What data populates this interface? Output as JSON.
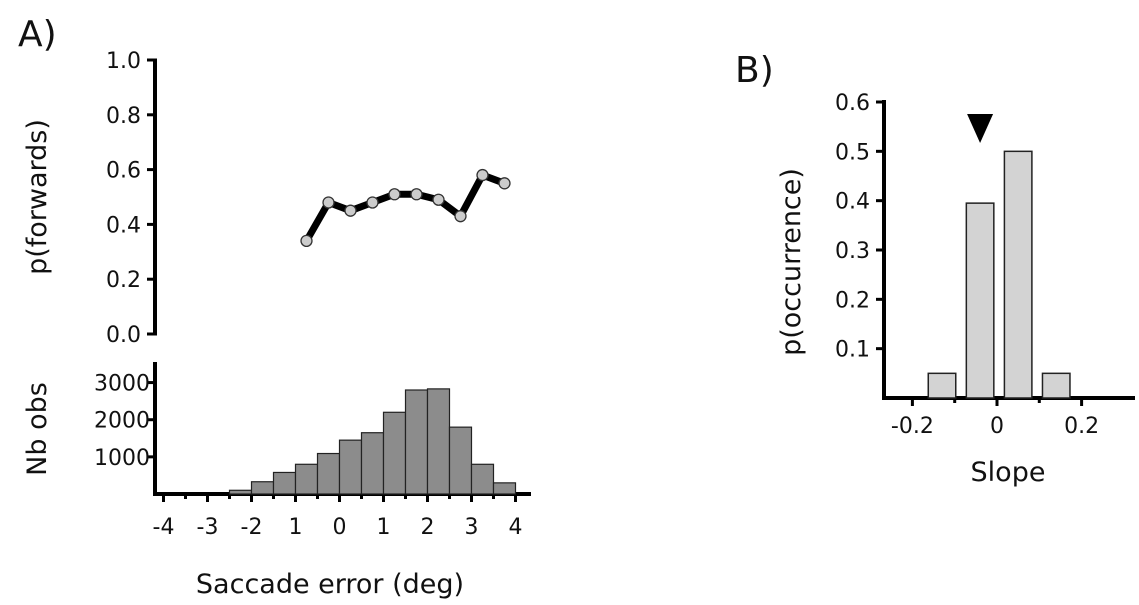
{
  "chart_data": [
    {
      "panel": "A)",
      "type": "line",
      "ylabel": "p(forwards)",
      "xlabel": "Saccade error (deg)",
      "ylim": [
        0.0,
        1.0
      ],
      "yticks": [
        "1.0",
        "0.8",
        "0.6",
        "0.4",
        "0.2",
        "0.0"
      ],
      "x": [
        -0.75,
        -0.25,
        0.25,
        0.75,
        1.25,
        1.75,
        2.25,
        2.75,
        3.25,
        3.75
      ],
      "values": [
        0.34,
        0.48,
        0.45,
        0.48,
        0.51,
        0.51,
        0.49,
        0.43,
        0.58,
        0.55
      ],
      "line_color": "#000000",
      "marker_color": "#cccccc"
    },
    {
      "type": "bar",
      "ylabel": "Nb obs",
      "xlabel": "Saccade error (deg)",
      "xticks": [
        "-4",
        "-3",
        "-2",
        "1",
        "0",
        "1",
        "2",
        "3",
        "4"
      ],
      "yticks": [
        "3000",
        "2000",
        "1000"
      ],
      "ylim": [
        0,
        3500
      ],
      "xlim": [
        -4.25,
        4.25
      ],
      "bin_width": 0.5,
      "x": [
        -2.25,
        -1.75,
        -1.25,
        -0.75,
        -0.25,
        0.25,
        0.75,
        1.25,
        1.75,
        2.25,
        2.75,
        3.25,
        3.75,
        4.25
      ],
      "values": [
        100,
        330,
        580,
        800,
        1090,
        1450,
        1650,
        2200,
        2800,
        2830,
        1800,
        800,
        300,
        0
      ],
      "bar_color": "#8c8c8c"
    },
    {
      "panel": "B)",
      "type": "bar",
      "ylabel": "p(occurrence)",
      "xlabel": "Slope",
      "xticks": [
        "-0.2",
        "0",
        "0.2"
      ],
      "yticks": [
        "0.6",
        "0.5",
        "0.4",
        "0.3",
        "0.2",
        "0.1"
      ],
      "ylim": [
        0,
        0.6
      ],
      "xlim": [
        -0.25,
        0.28
      ],
      "bin_width": 0.065,
      "x": [
        -0.13,
        -0.04,
        0.05,
        0.14
      ],
      "values": [
        0.05,
        0.395,
        0.5,
        0.05
      ],
      "bar_color": "#d3d3d3",
      "marker": {
        "type": "triangle-down",
        "x": -0.04
      }
    }
  ]
}
